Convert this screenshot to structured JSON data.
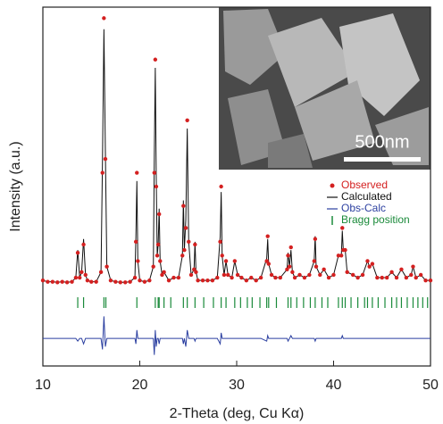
{
  "chart_data": {
    "type": "xrd",
    "x_label": "2-Theta (deg, Cu Kα)",
    "y_label": "Intensity (a.u.)",
    "xlim": [
      10,
      50
    ],
    "xticks": [
      10,
      20,
      30,
      40,
      50
    ],
    "ylim": [
      -30,
      100
    ],
    "legend": "upper right",
    "inset_label": "500nm",
    "x": [
      10,
      10.5,
      11,
      11.5,
      12,
      12.5,
      13,
      13.4,
      13.6,
      13.8,
      14.0,
      14.2,
      14.4,
      14.6,
      15,
      15.5,
      16.0,
      16.15,
      16.3,
      16.45,
      16.6,
      17,
      17.5,
      18,
      18.5,
      19,
      19.5,
      19.6,
      19.7,
      19.8,
      20,
      20.5,
      21,
      21.4,
      21.5,
      21.6,
      21.7,
      21.8,
      21.9,
      22.0,
      22.1,
      22.3,
      22.5,
      23,
      23.5,
      24,
      24.4,
      24.5,
      24.6,
      24.75,
      24.9,
      25.05,
      25.3,
      25.6,
      25.7,
      25.8,
      26,
      26.5,
      27,
      27.5,
      28,
      28.3,
      28.4,
      28.5,
      28.7,
      28.9,
      29.1,
      29.5,
      29.8,
      30.1,
      30.5,
      31,
      31.5,
      32,
      32.5,
      33.1,
      33.2,
      33.3,
      33.6,
      34,
      34.5,
      35.2,
      35.3,
      35.45,
      35.6,
      35.75,
      36,
      36.5,
      37,
      37.5,
      38.0,
      38.1,
      38.2,
      38.6,
      39,
      39.5,
      40,
      40.5,
      40.8,
      40.9,
      41.0,
      41.2,
      41.4,
      42,
      42.5,
      43,
      43.5,
      43.7,
      44,
      44.5,
      45,
      45.5,
      46,
      46.5,
      47,
      47.5,
      48,
      48.2,
      48.5,
      49,
      49.5,
      50
    ],
    "series": [
      {
        "name": "Observed",
        "color": "#d42020",
        "marker": "dot",
        "values": [
          1,
          0.5,
          0.5,
          0.3,
          0.5,
          0.3,
          0.5,
          2,
          11,
          2,
          4,
          14,
          3,
          1,
          0.5,
          0.5,
          4,
          40,
          96,
          45,
          6,
          1,
          0.5,
          0.3,
          0.3,
          0.5,
          2,
          15,
          40,
          8,
          1,
          0.5,
          1,
          6,
          40,
          81,
          35,
          10,
          14,
          25,
          8,
          3,
          4,
          1,
          2,
          2,
          10,
          28,
          12,
          20,
          59,
          15,
          3,
          5,
          14,
          4,
          1,
          1,
          1,
          1,
          2,
          15,
          35,
          10,
          3,
          8,
          3,
          2,
          8,
          3,
          2,
          1,
          2,
          1,
          2,
          8,
          17,
          7,
          3,
          2,
          2,
          5,
          10,
          6,
          13,
          4,
          2,
          3,
          2,
          3,
          8,
          16,
          6,
          3,
          5,
          2,
          3,
          10,
          10,
          20,
          12,
          12,
          4,
          3,
          2,
          3,
          8,
          6,
          7,
          2,
          2,
          2,
          4,
          2,
          5,
          2,
          3,
          6,
          2,
          3,
          1,
          1
        ]
      },
      {
        "name": "Calculated",
        "color": "#111111",
        "marker": "line",
        "values": [
          1,
          0.5,
          0.5,
          0.3,
          0.5,
          0.3,
          0.5,
          2,
          12,
          2,
          4,
          16,
          3,
          1,
          0.5,
          0.5,
          4,
          44,
          92,
          48,
          6,
          1,
          0.5,
          0.3,
          0.3,
          0.5,
          2,
          17,
          37,
          8,
          1,
          0.5,
          1,
          6,
          46,
          78,
          38,
          10,
          14,
          27,
          8,
          3,
          4,
          1,
          2,
          2,
          10,
          30,
          12,
          23,
          56,
          15,
          3,
          5,
          15,
          4,
          1,
          1,
          1,
          1,
          2,
          17,
          33,
          10,
          3,
          8,
          3,
          2,
          8,
          3,
          2,
          1,
          2,
          1,
          2,
          9,
          16,
          7,
          3,
          2,
          2,
          5,
          11,
          6,
          12,
          4,
          2,
          3,
          2,
          3,
          8,
          17,
          6,
          3,
          5,
          2,
          3,
          10,
          10,
          19,
          12,
          12,
          4,
          3,
          2,
          3,
          8,
          6,
          7,
          2,
          2,
          2,
          4,
          2,
          5,
          2,
          3,
          6,
          2,
          3,
          1,
          1
        ]
      },
      {
        "name": "Obs-Calc",
        "color": "#2b3fa0",
        "marker": "line",
        "values": [
          -20,
          -20,
          -20,
          -20,
          -20,
          -20,
          -20,
          -20,
          -21,
          -20,
          -20,
          -22,
          -20,
          -20,
          -20,
          -20,
          -20,
          -24,
          -12,
          -23,
          -20,
          -20,
          -20,
          -20,
          -20,
          -20,
          -20,
          -22,
          -17,
          -20,
          -20,
          -20,
          -20,
          -20,
          -26,
          -17,
          -23,
          -20,
          -20,
          -22,
          -20,
          -20,
          -20,
          -20,
          -20,
          -20,
          -20,
          -22,
          -20,
          -23,
          -17,
          -20,
          -20,
          -20,
          -21,
          -20,
          -20,
          -20,
          -20,
          -20,
          -20,
          -22,
          -18,
          -20,
          -20,
          -20,
          -20,
          -20,
          -20,
          -20,
          -20,
          -20,
          -20,
          -20,
          -20,
          -21,
          -19,
          -20,
          -20,
          -20,
          -20,
          -20,
          -21,
          -20,
          -19,
          -20,
          -20,
          -20,
          -20,
          -20,
          -20,
          -21,
          -20,
          -20,
          -20,
          -20,
          -20,
          -20,
          -20,
          -19,
          -20,
          -20,
          -20,
          -20,
          -20,
          -20,
          -20,
          -20,
          -20,
          -20,
          -20,
          -20,
          -20,
          -20,
          -20,
          -20,
          -20,
          -20,
          -20,
          -20,
          -20,
          -20
        ]
      },
      {
        "name": "Bragg position",
        "color": "#1a8a3a",
        "marker": "tick",
        "x": [
          13.6,
          14.2,
          16.3,
          16.5,
          19.7,
          21.6,
          21.9,
          22.0,
          22.5,
          23.2,
          24.5,
          24.9,
          25.7,
          26.6,
          27.6,
          28.4,
          28.9,
          29.8,
          30.4,
          31.1,
          31.6,
          32.4,
          33.1,
          33.3,
          34.1,
          35.3,
          35.6,
          36.2,
          36.9,
          37.6,
          38.1,
          38.8,
          39.4,
          40.5,
          40.9,
          41.2,
          41.8,
          42.5,
          43.2,
          43.5,
          44.0,
          44.6,
          45.3,
          46.0,
          46.5,
          47.0,
          47.6,
          48.2,
          48.7,
          49.2,
          49.7
        ]
      }
    ]
  }
}
